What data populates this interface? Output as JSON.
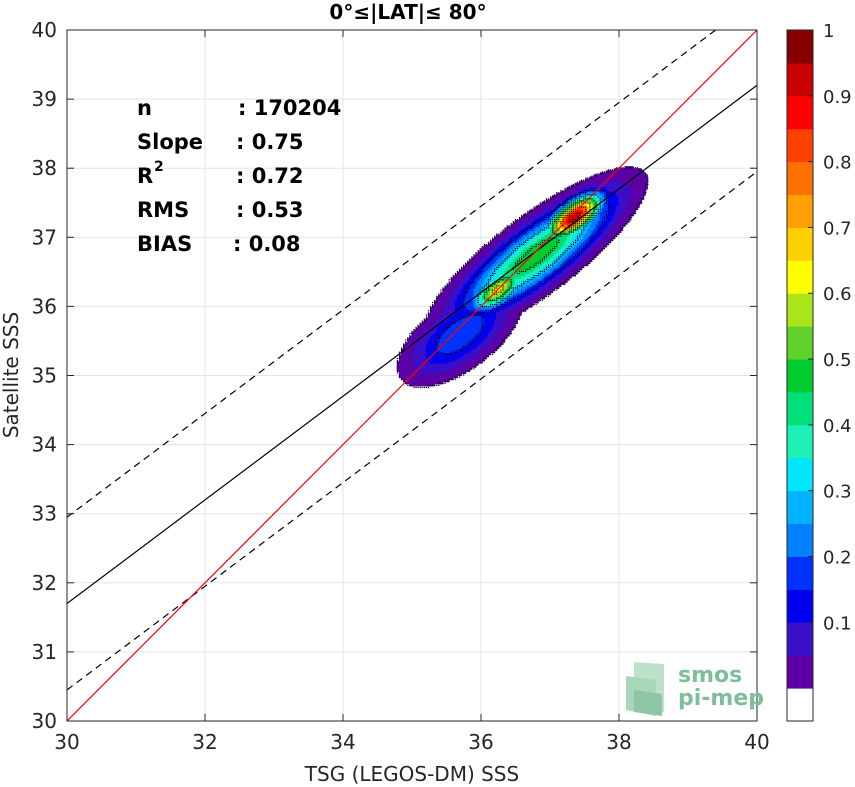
{
  "chart_data": {
    "type": "heatmap",
    "title": "0°≤|LAT|≤ 80°",
    "xlabel": "TSG (LEGOS-DM) SSS",
    "ylabel": "Satellite SSS",
    "xlim": [
      30,
      40
    ],
    "ylim": [
      30,
      40
    ],
    "xticks": [
      "30",
      "32",
      "34",
      "36",
      "38",
      "40"
    ],
    "yticks": [
      "30",
      "31",
      "32",
      "33",
      "34",
      "35",
      "36",
      "37",
      "38",
      "39",
      "40"
    ],
    "grid": true,
    "stats": [
      {
        "label": "n",
        "value": ": 170204"
      },
      {
        "label": "Slope",
        "value": ": 0.75"
      },
      {
        "label": "R",
        "sup": "2",
        "value": ": 0.72"
      },
      {
        "label": "RMS",
        "value": ": 0.53"
      },
      {
        "label": "BIAS",
        "value": ": 0.08"
      }
    ],
    "lines": {
      "identity": {
        "color": "#ff0000",
        "slope": 1,
        "intercept": 0
      },
      "regression": {
        "color": "#000000",
        "slope": 0.75,
        "intercept": 9.2
      },
      "offsets": {
        "color": "#000000",
        "dash": true,
        "slope": 0.75,
        "intercepts": [
          10.45,
          7.95
        ]
      }
    },
    "density_peaks": [
      {
        "x": 37.35,
        "y": 37.3,
        "peak": 1.0,
        "sx": 0.32,
        "sy": 0.14,
        "slope": 0.75
      },
      {
        "x": 36.25,
        "y": 36.25,
        "peak": 0.68,
        "sx": 0.3,
        "sy": 0.14,
        "slope": 0.75
      },
      {
        "x": 36.8,
        "y": 36.75,
        "peak": 0.55,
        "sx": 0.9,
        "sy": 0.26,
        "slope": 0.75
      },
      {
        "x": 35.7,
        "y": 35.6,
        "peak": 0.25,
        "sx": 0.6,
        "sy": 0.28,
        "slope": 0.75
      }
    ],
    "contour_levels": [
      0.05,
      0.1,
      0.15,
      0.2,
      0.25,
      0.3,
      0.35,
      0.4,
      0.45,
      0.5,
      0.55,
      0.6,
      0.65,
      0.7,
      0.75,
      0.8,
      0.85,
      0.9,
      0.95
    ],
    "colorbar": {
      "ticks": [
        "0.1",
        "0.2",
        "0.3",
        "0.4",
        "0.5",
        "0.6",
        "0.7",
        "0.8",
        "0.9",
        "1"
      ],
      "colors": [
        "#ffffff",
        "#5a00a6",
        "#3a0fc8",
        "#0000f0",
        "#0033ff",
        "#0080ff",
        "#00b3ff",
        "#00e6ff",
        "#1ef0b8",
        "#00e07a",
        "#00cc30",
        "#5fd32b",
        "#a8e619",
        "#ffff00",
        "#ffd000",
        "#ffa000",
        "#ff7000",
        "#ff4000",
        "#ff0000",
        "#c80000",
        "#870000"
      ]
    }
  },
  "watermark": {
    "line1": "smos",
    "line2": "pi-mep",
    "color": "#7dbf9a"
  }
}
